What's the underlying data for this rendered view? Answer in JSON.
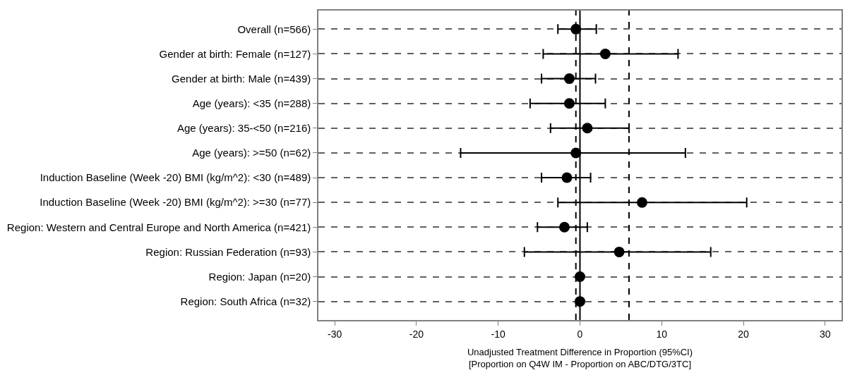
{
  "chart_data": {
    "type": "scatter",
    "orientation": "horizontal",
    "categories": [
      "Overall (n=566)",
      "Gender at birth: Female (n=127)",
      "Gender at birth: Male (n=439)",
      "Age (years): <35 (n=288)",
      "Age (years): 35-<50 (n=216)",
      "Age (years): >=50 (n=62)",
      "Induction Baseline (Week -20) BMI (kg/m^2): <30 (n=489)",
      "Induction Baseline (Week -20) BMI (kg/m^2): >=30 (n=77)",
      "Region: Western and Central Europe and North America (n=421)",
      "Region: Russian Federation (n=93)",
      "Region: Japan (n=20)",
      "Region: South Africa (n=32)"
    ],
    "values": [
      -0.5,
      3.1,
      -1.3,
      -1.3,
      0.9,
      -0.5,
      -1.6,
      7.6,
      -1.9,
      4.8,
      0,
      0
    ],
    "errors": [
      [
        -2.7,
        2.0
      ],
      [
        -4.5,
        12.0
      ],
      [
        -4.7,
        1.9
      ],
      [
        -6.1,
        3.1
      ],
      [
        -3.6,
        6.0
      ],
      [
        -14.6,
        12.9
      ],
      [
        -4.7,
        1.3
      ],
      [
        -2.7,
        20.4
      ],
      [
        -5.2,
        0.9
      ],
      [
        -6.8,
        16.0
      ],
      null,
      null
    ],
    "color": "#000000",
    "marker": "circle",
    "xlabel": "Unadjusted Treatment Difference in Proportion (95%CI)\n[Proportion on Q4W IM - Proportion on ABC/DTG/3TC]",
    "xlim": [
      -32,
      32
    ],
    "xticks": [
      -30,
      -20,
      -10,
      0,
      10,
      20,
      30
    ],
    "grid": "y",
    "ref_lines": [
      {
        "axis": "x",
        "value": -0.5,
        "color": "#000000",
        "line_style": "dashed"
      },
      {
        "axis": "x",
        "value": 0,
        "color": "#000000",
        "line_style": "solid"
      },
      {
        "axis": "x",
        "value": 6,
        "color": "#000000",
        "line_style": "dashed"
      }
    ]
  }
}
